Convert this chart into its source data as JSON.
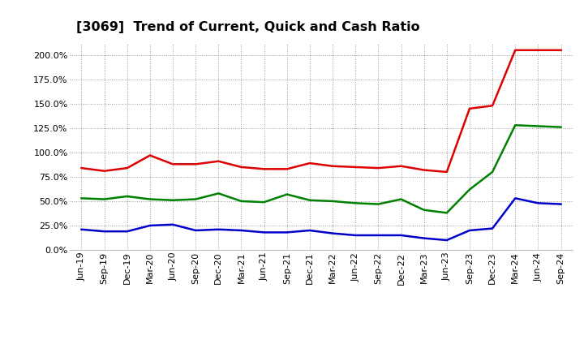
{
  "title": "[3069]  Trend of Current, Quick and Cash Ratio",
  "x_labels": [
    "Jun-19",
    "Sep-19",
    "Dec-19",
    "Mar-20",
    "Jun-20",
    "Sep-20",
    "Dec-20",
    "Mar-21",
    "Jun-21",
    "Sep-21",
    "Dec-21",
    "Mar-22",
    "Jun-22",
    "Sep-22",
    "Dec-22",
    "Mar-23",
    "Jun-23",
    "Sep-23",
    "Dec-23",
    "Mar-24",
    "Jun-24",
    "Sep-24"
  ],
  "current_ratio": [
    84,
    81,
    84,
    97,
    88,
    88,
    91,
    85,
    83,
    83,
    89,
    86,
    85,
    84,
    86,
    82,
    80,
    145,
    148,
    205,
    205,
    205
  ],
  "quick_ratio": [
    53,
    52,
    55,
    52,
    51,
    52,
    58,
    50,
    49,
    57,
    51,
    50,
    48,
    47,
    52,
    41,
    38,
    62,
    80,
    128,
    127,
    126
  ],
  "cash_ratio": [
    21,
    19,
    19,
    25,
    26,
    20,
    21,
    20,
    18,
    18,
    20,
    17,
    15,
    15,
    15,
    12,
    10,
    20,
    22,
    53,
    48,
    47
  ],
  "current_color": "#dd0000",
  "quick_color": "#008000",
  "cash_color": "#0000cc",
  "bg_color": "#ffffff",
  "plot_bg_color": "#ffffff",
  "grid_color": "#999999",
  "ylim": [
    0,
    212.5
  ],
  "yticks": [
    0,
    25,
    50,
    75,
    100,
    125,
    150,
    175,
    200
  ],
  "line_width": 1.8,
  "title_fontsize": 11.5,
  "legend_fontsize": 9.5,
  "tick_fontsize": 8.0
}
